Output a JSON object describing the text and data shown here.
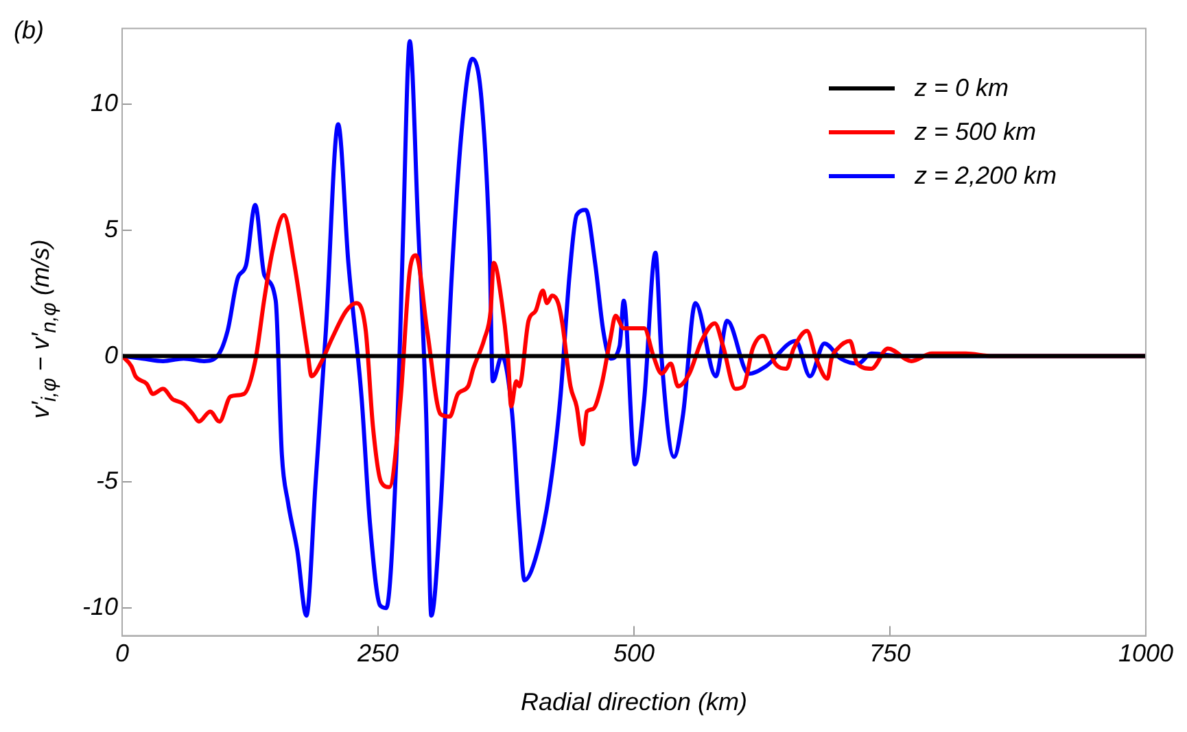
{
  "chart_data": {
    "type": "line",
    "title": "(b)",
    "xlabel": "Radial direction (km)",
    "ylabel": "v′$_{i,φ}$ − v′$_{n,φ}$ (m/s)",
    "xlim": [
      0,
      1000
    ],
    "xticks": [
      0,
      250,
      500,
      750,
      1000
    ],
    "ylim": [
      -11.1,
      13
    ],
    "yticks": [
      -10,
      -5,
      0,
      5,
      10
    ],
    "legend": "top right",
    "grid": false,
    "marker": "none",
    "line_style": "solid",
    "series": [
      {
        "name": "z = 0 km",
        "color": "#000000",
        "x": [
          0,
          1000
        ],
        "values": [
          0,
          0
        ]
      },
      {
        "name": "z = 500 km",
        "color": "#ff0000",
        "x": [
          0,
          9,
          13,
          24,
          30,
          40,
          49,
          60,
          69,
          75,
          86,
          95,
          106,
          119,
          130,
          139,
          147,
          158,
          168,
          181,
          185,
          195,
          205,
          219,
          229,
          238,
          245,
          253,
          261,
          272,
          281,
          287,
          298,
          311,
          320,
          328,
          338,
          343,
          354,
          360,
          363,
          371,
          377,
          380,
          385,
          388,
          397,
          404,
          411,
          415,
          420,
          426,
          430,
          438,
          444,
          450,
          454,
          460,
          468,
          477,
          482,
          490,
          503,
          510,
          519,
          527,
          536,
          543,
          554,
          566,
          579,
          587,
          599,
          607,
          616,
          626,
          638,
          649,
          656,
          669,
          678,
          689,
          693,
          699,
          711,
          718,
          732,
          748,
          771,
          791,
          824,
          850,
          1000
        ],
        "values": [
          0,
          -0.4,
          -0.8,
          -1.1,
          -1.5,
          -1.3,
          -1.7,
          -1.9,
          -2.3,
          -2.6,
          -2.2,
          -2.6,
          -1.6,
          -1.5,
          -0.2,
          2.3,
          4.2,
          5.6,
          3.7,
          0.2,
          -0.8,
          -0.2,
          0.7,
          1.8,
          2.1,
          1,
          -2.8,
          -5,
          -5.2,
          -1.7,
          3.4,
          4,
          1,
          -2.3,
          -2.4,
          -1.5,
          -1.2,
          -0.5,
          0.7,
          1.8,
          3.7,
          2.1,
          -0.1,
          -2,
          -1,
          -1.2,
          1.4,
          1.8,
          2.6,
          2.1,
          2.4,
          2.1,
          1.3,
          -1.2,
          -2,
          -3.5,
          -2.2,
          -2.1,
          -1.2,
          0.7,
          1.6,
          1.1,
          1.1,
          1.1,
          0,
          -0.7,
          -0.3,
          -1.2,
          -0.7,
          0.6,
          1.3,
          0.4,
          -1.3,
          -1.2,
          0.3,
          0.8,
          -0.3,
          -0.5,
          0.3,
          1,
          -0.1,
          -0.9,
          -0.1,
          0.3,
          0.6,
          -0.3,
          -0.5,
          0.3,
          -0.2,
          0.1,
          0.1,
          0,
          0
        ]
      },
      {
        "name": "z = 2,200 km",
        "color": "#0000ff",
        "x": [
          0,
          20,
          40,
          60,
          80,
          93,
          103,
          113,
          121,
          130,
          139,
          150,
          156,
          162,
          171,
          180,
          189,
          199,
          211,
          221,
          234,
          242,
          252,
          258,
          268,
          274,
          281,
          289,
          297,
          302,
          311,
          322,
          332,
          342,
          351,
          359,
          362,
          371,
          381,
          388,
          393,
          404,
          417,
          428,
          437,
          444,
          453,
          462,
          470,
          477,
          486,
          490,
          501,
          510,
          521,
          527,
          539,
          548,
          560,
          580,
          591,
          612,
          629,
          658,
          672,
          686,
          702,
          719,
          732,
          760,
          1000
        ],
        "values": [
          0,
          -0.1,
          -0.2,
          -0.1,
          -0.2,
          0,
          1,
          3.1,
          3.6,
          6,
          3.2,
          2.2,
          -3.9,
          -5.8,
          -7.7,
          -10.3,
          -5,
          1,
          9.2,
          3.7,
          -1.7,
          -6.6,
          -9.9,
          -10,
          -3.9,
          4.2,
          12.5,
          5.3,
          -2.3,
          -10.3,
          -6.1,
          3.2,
          9.1,
          11.8,
          10.2,
          4.2,
          -1,
          0,
          -2.3,
          -6.6,
          -8.9,
          -8,
          -5.5,
          -1.7,
          3.2,
          5.6,
          5.8,
          3.7,
          1,
          -0.1,
          0.4,
          2.2,
          -4.3,
          -1.7,
          4.1,
          -0.1,
          -4,
          -2.3,
          2.1,
          -0.8,
          1.4,
          -0.7,
          -0.4,
          0.6,
          -0.8,
          0.5,
          -0.1,
          -0.3,
          0.1,
          0,
          0
        ]
      }
    ]
  }
}
